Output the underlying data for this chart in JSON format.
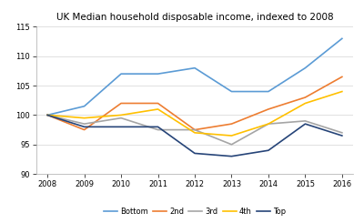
{
  "title": "UK Median household disposable income, indexed to 2008",
  "years": [
    2008,
    2009,
    2010,
    2011,
    2012,
    2013,
    2014,
    2015,
    2016
  ],
  "series": {
    "Bottom": [
      100,
      101.5,
      107,
      107,
      108,
      104,
      104,
      108,
      113
    ],
    "2nd": [
      100,
      97.5,
      102,
      102,
      97.5,
      98.5,
      101,
      103,
      106.5
    ],
    "3rd": [
      100,
      98.5,
      99.5,
      97.5,
      97.5,
      95,
      98.5,
      99,
      97
    ],
    "4th": [
      100,
      99.5,
      100,
      101,
      97,
      96.5,
      98.5,
      102,
      104
    ],
    "Top": [
      100,
      98,
      98,
      98,
      93.5,
      93,
      94,
      98.5,
      96.5
    ]
  },
  "series_colors": {
    "Bottom": "#5B9BD5",
    "2nd": "#ED7D31",
    "3rd": "#A5A5A5",
    "4th": "#FFC000",
    "Top": "#264478"
  },
  "ylim": [
    90,
    115
  ],
  "yticks": [
    90,
    95,
    100,
    105,
    110,
    115
  ],
  "xlim": [
    2008,
    2016
  ],
  "xticks": [
    2008,
    2009,
    2010,
    2011,
    2012,
    2013,
    2014,
    2015,
    2016
  ],
  "legend_order": [
    "Bottom",
    "2nd",
    "3rd",
    "4th",
    "Top"
  ],
  "background_color": "#FFFFFF",
  "grid_color": "#D3D3D3",
  "spine_color": "#AAAAAA"
}
